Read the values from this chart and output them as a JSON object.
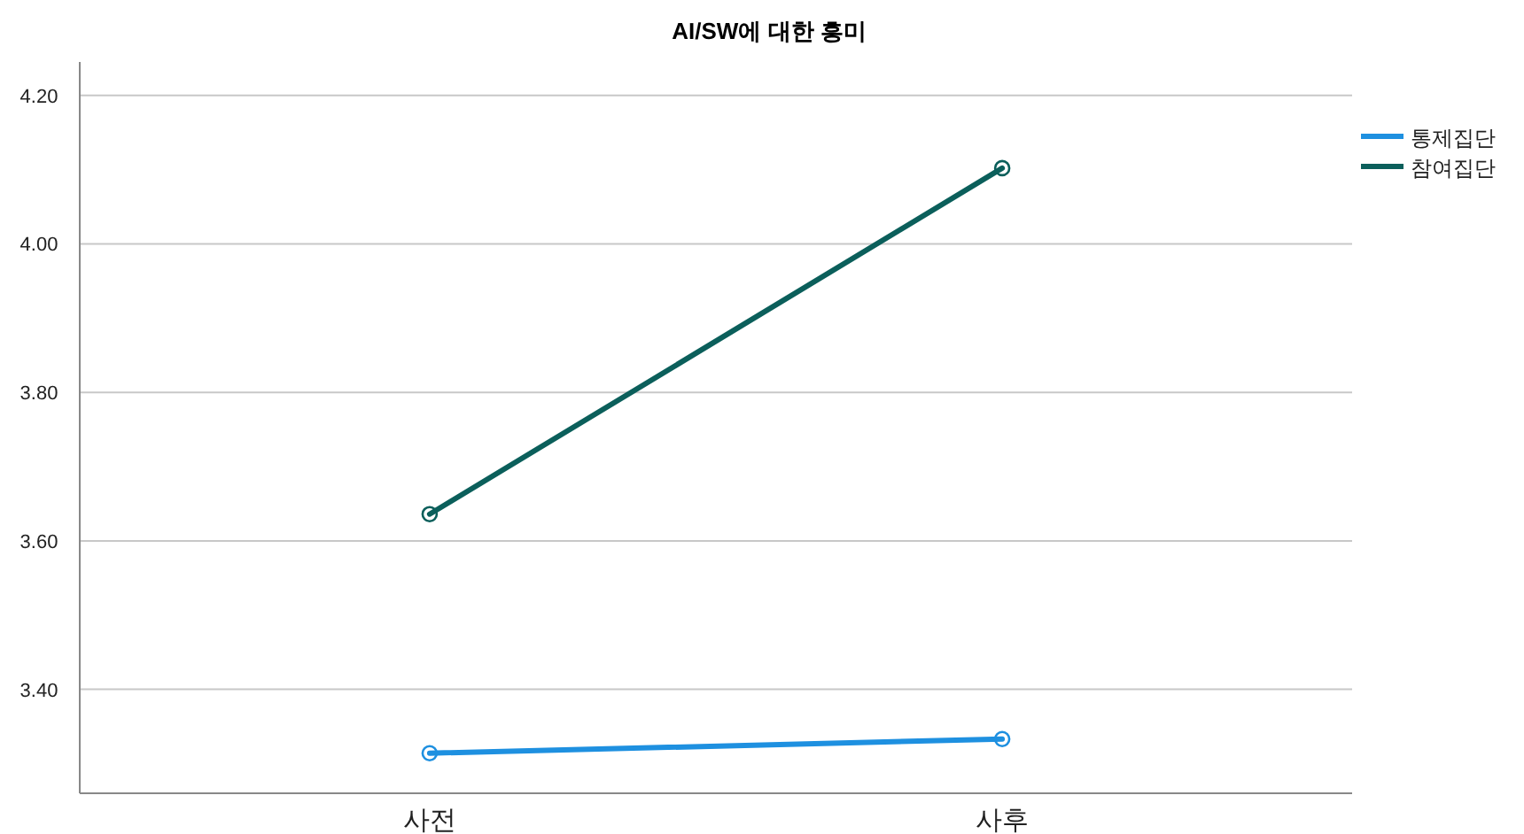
{
  "chart_data": {
    "type": "line",
    "title": "AI/SW에 대한 흥미",
    "categories": [
      "사전",
      "사후"
    ],
    "series": [
      {
        "name": "통제집단",
        "color": "#1e90e0",
        "values": [
          3.314,
          3.333
        ]
      },
      {
        "name": "참여집단",
        "color": "#0b5f5b",
        "values": [
          3.636,
          4.102
        ]
      }
    ],
    "ylim": [
      3.26,
      4.245
    ],
    "yticks": [
      {
        "value": 3.4,
        "label": "3.40"
      },
      {
        "value": 3.6,
        "label": "3.60"
      },
      {
        "value": 3.8,
        "label": "3.80"
      },
      {
        "value": 4.0,
        "label": "4.00"
      },
      {
        "value": 4.2,
        "label": "4.20"
      }
    ],
    "grid": "y",
    "legend": "top right",
    "marker": "circle",
    "line_style": "solid"
  }
}
